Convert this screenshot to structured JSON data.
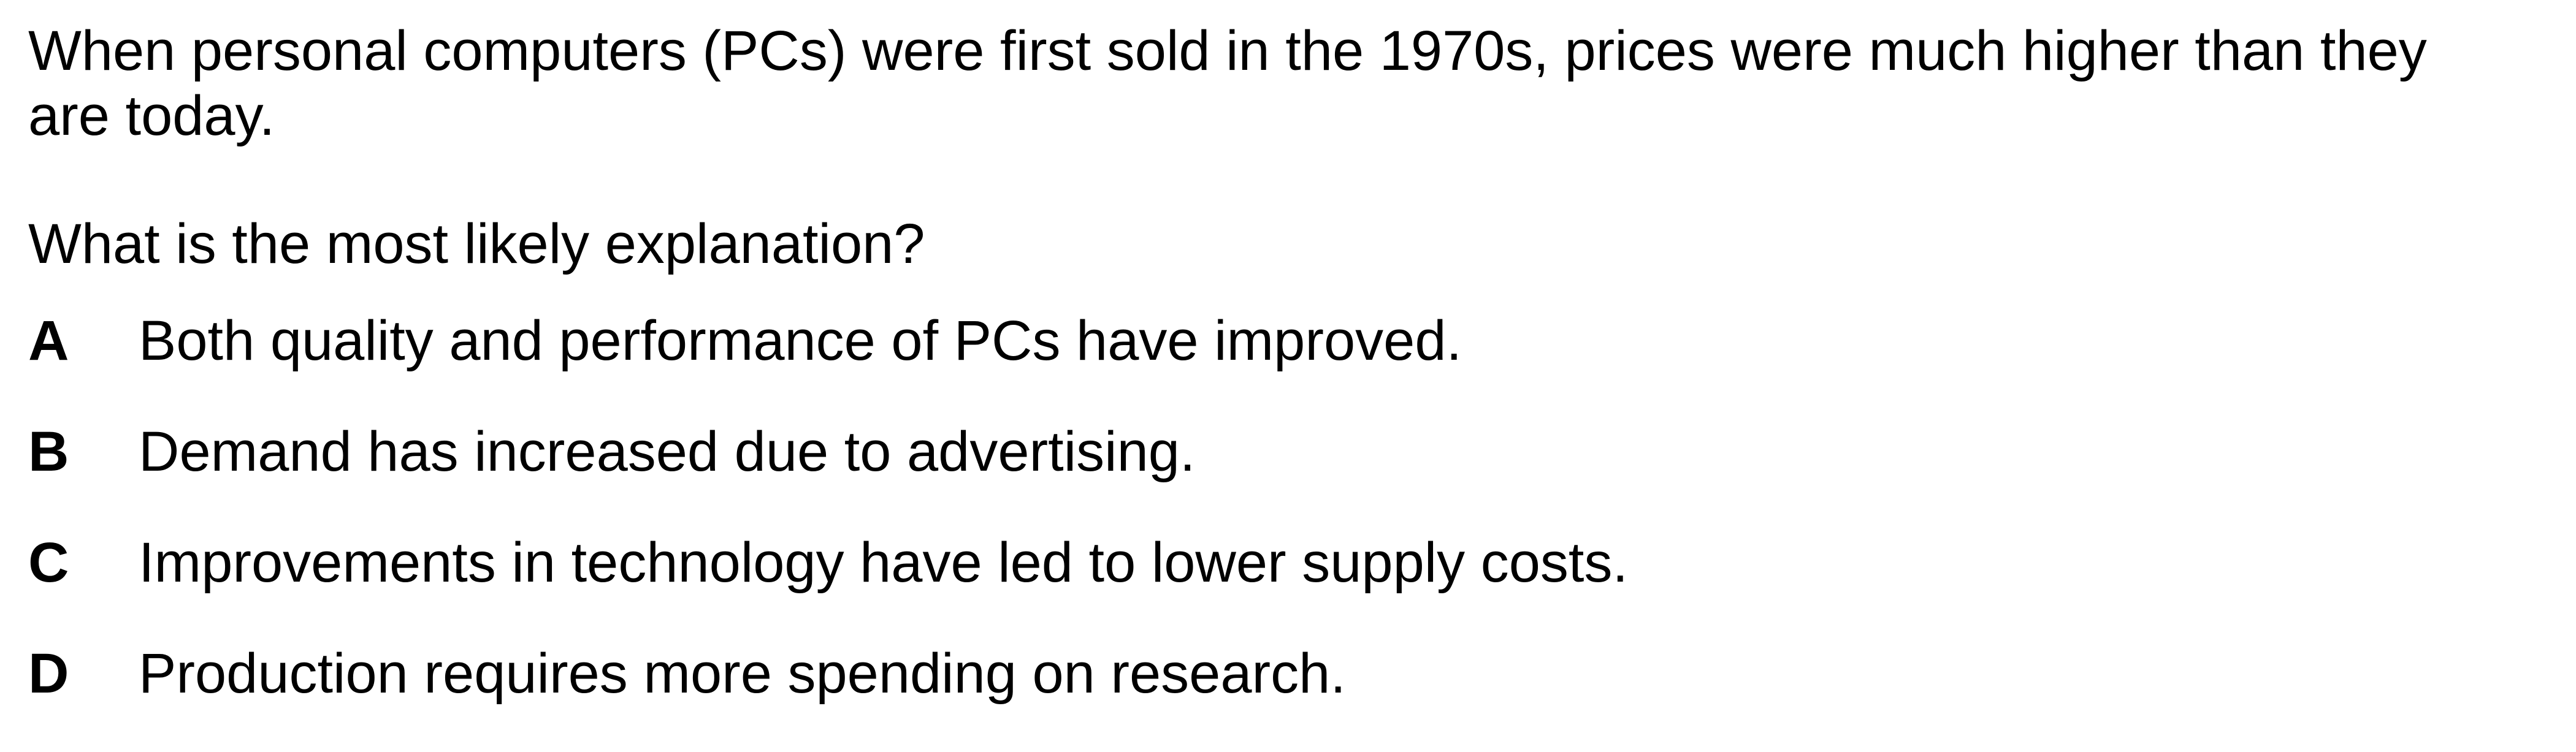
{
  "stem": "When personal computers (PCs) were first sold in the 1970s, prices were much higher than they are today.",
  "question": "What is the most likely explanation?",
  "options": [
    {
      "letter": "A",
      "text": "Both quality and performance of PCs have improved."
    },
    {
      "letter": "B",
      "text": "Demand has increased due to advertising."
    },
    {
      "letter": "C",
      "text": "Improvements in technology have led to lower supply costs."
    },
    {
      "letter": "D",
      "text": "Production requires more spending on research."
    }
  ]
}
